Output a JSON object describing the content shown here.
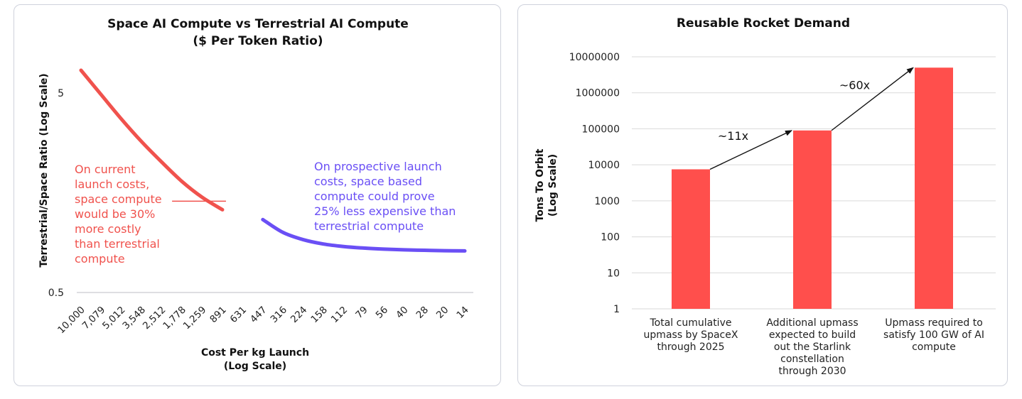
{
  "chart_data": [
    {
      "type": "line",
      "title": "Space AI Compute vs Terrestrial AI Compute",
      "subtitle": "($ Per Token Ratio)",
      "xlabel": "Cost Per kg Launch",
      "xlabel_sub": "(Log Scale)",
      "ylabel": "Terrestrial/Space Ratio (Log Scale)",
      "y_scale": "log",
      "ylim": [
        0.5,
        8
      ],
      "y_ticks": [
        "5",
        "0.5"
      ],
      "y_tick_values": [
        5,
        0.5
      ],
      "categories": [
        "10,000",
        "7,079",
        "5,012",
        "3,548",
        "2,512",
        "1,778",
        "1,259",
        "891",
        "631",
        "447",
        "316",
        "224",
        "158",
        "112",
        "79",
        "56",
        "40",
        "28",
        "20",
        "14"
      ],
      "series": [
        {
          "color": "#f0524d",
          "values": [
            6.5,
            4.9,
            3.7,
            2.85,
            2.25,
            1.8,
            1.5,
            1.3,
            null,
            null,
            null,
            null,
            null,
            null,
            null,
            null,
            null,
            null,
            null,
            null
          ]
        },
        {
          "color": "#6a4ff5",
          "values": [
            null,
            null,
            null,
            null,
            null,
            null,
            null,
            null,
            null,
            1.16,
            1.0,
            0.92,
            0.875,
            0.85,
            0.835,
            0.825,
            0.818,
            0.814,
            0.81,
            0.808
          ]
        }
      ],
      "reference_line": {
        "value": 1.3,
        "color": "#f0524d"
      },
      "annotations": [
        {
          "color": "#f0524d",
          "lines": [
            "On current",
            "launch costs,",
            "space compute",
            "would be 30%",
            "more costly",
            "than terrestrial",
            "compute"
          ]
        },
        {
          "color": "#6a4ff5",
          "lines": [
            "On prospective launch",
            "costs, space based",
            "compute could prove",
            "25% less expensive than",
            "terrestrial compute"
          ]
        }
      ],
      "grid": false
    },
    {
      "type": "bar",
      "title": "Reusable Rocket Demand",
      "ylabel": "Tons To Orbit",
      "ylabel_sub": "(Log Scale)",
      "y_scale": "log",
      "ylim": [
        1,
        10000000
      ],
      "y_ticks": [
        "1",
        "10",
        "100",
        "1000",
        "10000",
        "100000",
        "1000000",
        "10000000"
      ],
      "categories": [
        [
          "Total cumulative",
          "upmass by SpaceX",
          "through 2025"
        ],
        [
          "Additional upmass",
          "expected to build",
          "out the Starlink",
          "constellation",
          "through 2030"
        ],
        [
          "Upmass required to",
          "satisfy 100 GW of AI",
          "compute"
        ]
      ],
      "values": [
        7500,
        90000,
        5000000
      ],
      "bar_color": "#ff4f4c",
      "arrows": [
        {
          "from": 0,
          "to": 1,
          "label": "~11x"
        },
        {
          "from": 1,
          "to": 2,
          "label": "~60x"
        }
      ],
      "grid": true
    }
  ]
}
